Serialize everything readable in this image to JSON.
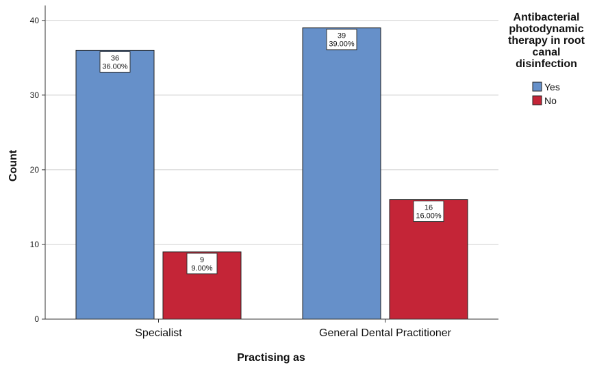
{
  "chart_data": {
    "type": "bar",
    "categories": [
      "Specialist",
      "General Dental Practitioner"
    ],
    "series": [
      {
        "name": "Yes",
        "values": [
          36,
          39
        ],
        "labels": [
          "36.00%",
          "39.00%"
        ],
        "color": "#6690C9"
      },
      {
        "name": "No",
        "values": [
          9,
          16
        ],
        "labels": [
          "9.00%",
          "16.00%"
        ],
        "color": "#C42537"
      }
    ],
    "title": "",
    "xlabel": "Practising as",
    "ylabel": "Count",
    "ylim": [
      0,
      42
    ],
    "yticks": [
      0,
      10,
      20,
      30,
      40
    ],
    "grid": true,
    "legend": {
      "title_lines": [
        "Antibacterial",
        "photodynamic",
        "therapy in root",
        "canal",
        "disinfection"
      ],
      "placement": "top-right"
    }
  }
}
